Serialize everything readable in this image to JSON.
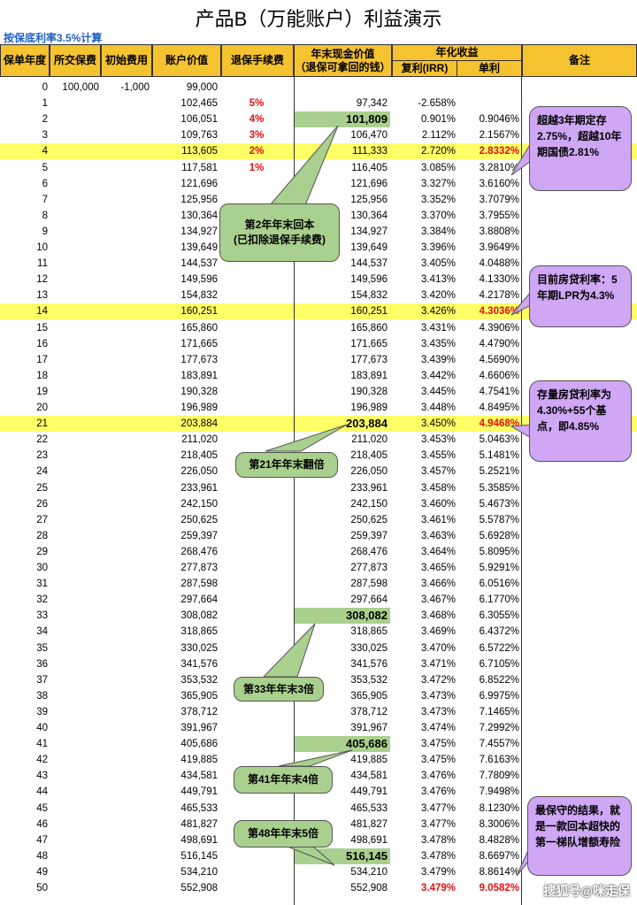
{
  "title": "产品B（万能账户）利益演示",
  "subtitle": "按保底利率3.5%计算",
  "headers": {
    "year": "保单年度",
    "premium": "所交保费",
    "initial_fee": "初始费用",
    "account_value": "账户价值",
    "surrender_fee": "退保手续费",
    "cash_value": "年末现金价值",
    "cash_value_sub": "（退保可拿回的钱）",
    "annual_yield": "年化收益",
    "compound": "复利(IRR)",
    "simple": "单利",
    "remarks": "备注"
  },
  "rows": [
    {
      "year": "0",
      "premium": "100,000",
      "fee": "-1,000",
      "account": "99,000",
      "surrender": "",
      "cash": "",
      "compound": "",
      "simple": ""
    },
    {
      "year": "1",
      "premium": "",
      "fee": "",
      "account": "102,465",
      "surrender": "5%",
      "cash": "97,342",
      "compound": "-2.658%",
      "simple": ""
    },
    {
      "year": "2",
      "premium": "",
      "fee": "",
      "account": "106,051",
      "surrender": "4%",
      "cash": "101,809",
      "compound": "0.901%",
      "simple": "0.9046%"
    },
    {
      "year": "3",
      "premium": "",
      "fee": "",
      "account": "109,763",
      "surrender": "3%",
      "cash": "106,470",
      "compound": "2.112%",
      "simple": "2.1567%"
    },
    {
      "year": "4",
      "premium": "",
      "fee": "",
      "account": "113,605",
      "surrender": "2%",
      "cash": "111,333",
      "compound": "2.720%",
      "simple": "2.8332%"
    },
    {
      "year": "5",
      "premium": "",
      "fee": "",
      "account": "117,581",
      "surrender": "1%",
      "cash": "116,405",
      "compound": "3.085%",
      "simple": "3.2810%"
    },
    {
      "year": "6",
      "premium": "",
      "fee": "",
      "account": "121,696",
      "surrender": "",
      "cash": "121,696",
      "compound": "3.327%",
      "simple": "3.6160%"
    },
    {
      "year": "7",
      "premium": "",
      "fee": "",
      "account": "125,956",
      "surrender": "",
      "cash": "125,956",
      "compound": "3.352%",
      "simple": "3.7079%"
    },
    {
      "year": "8",
      "premium": "",
      "fee": "",
      "account": "130,364",
      "surrender": "",
      "cash": "130,364",
      "compound": "3.370%",
      "simple": "3.7955%"
    },
    {
      "year": "9",
      "premium": "",
      "fee": "",
      "account": "134,927",
      "surrender": "",
      "cash": "134,927",
      "compound": "3.384%",
      "simple": "3.8808%"
    },
    {
      "year": "10",
      "premium": "",
      "fee": "",
      "account": "139,649",
      "surrender": "",
      "cash": "139,649",
      "compound": "3.396%",
      "simple": "3.9649%"
    },
    {
      "year": "11",
      "premium": "",
      "fee": "",
      "account": "144,537",
      "surrender": "",
      "cash": "144,537",
      "compound": "3.405%",
      "simple": "4.0488%"
    },
    {
      "year": "12",
      "premium": "",
      "fee": "",
      "account": "149,596",
      "surrender": "",
      "cash": "149,596",
      "compound": "3.413%",
      "simple": "4.1330%"
    },
    {
      "year": "13",
      "premium": "",
      "fee": "",
      "account": "154,832",
      "surrender": "",
      "cash": "154,832",
      "compound": "3.420%",
      "simple": "4.2178%"
    },
    {
      "year": "14",
      "premium": "",
      "fee": "",
      "account": "160,251",
      "surrender": "",
      "cash": "160,251",
      "compound": "3.426%",
      "simple": "4.3036%"
    },
    {
      "year": "15",
      "premium": "",
      "fee": "",
      "account": "165,860",
      "surrender": "",
      "cash": "165,860",
      "compound": "3.431%",
      "simple": "4.3906%"
    },
    {
      "year": "16",
      "premium": "",
      "fee": "",
      "account": "171,665",
      "surrender": "",
      "cash": "171,665",
      "compound": "3.435%",
      "simple": "4.4790%"
    },
    {
      "year": "17",
      "premium": "",
      "fee": "",
      "account": "177,673",
      "surrender": "",
      "cash": "177,673",
      "compound": "3.439%",
      "simple": "4.5690%"
    },
    {
      "year": "18",
      "premium": "",
      "fee": "",
      "account": "183,891",
      "surrender": "",
      "cash": "183,891",
      "compound": "3.442%",
      "simple": "4.6606%"
    },
    {
      "year": "19",
      "premium": "",
      "fee": "",
      "account": "190,328",
      "surrender": "",
      "cash": "190,328",
      "compound": "3.445%",
      "simple": "4.7541%"
    },
    {
      "year": "20",
      "premium": "",
      "fee": "",
      "account": "196,989",
      "surrender": "",
      "cash": "196,989",
      "compound": "3.448%",
      "simple": "4.8495%"
    },
    {
      "year": "21",
      "premium": "",
      "fee": "",
      "account": "203,884",
      "surrender": "",
      "cash": "203,884",
      "compound": "3.450%",
      "simple": "4.9468%"
    },
    {
      "year": "22",
      "premium": "",
      "fee": "",
      "account": "211,020",
      "surrender": "",
      "cash": "211,020",
      "compound": "3.453%",
      "simple": "5.0463%"
    },
    {
      "year": "23",
      "premium": "",
      "fee": "",
      "account": "218,405",
      "surrender": "",
      "cash": "218,405",
      "compound": "3.455%",
      "simple": "5.1481%"
    },
    {
      "year": "24",
      "premium": "",
      "fee": "",
      "account": "226,050",
      "surrender": "",
      "cash": "226,050",
      "compound": "3.457%",
      "simple": "5.2521%"
    },
    {
      "year": "25",
      "premium": "",
      "fee": "",
      "account": "233,961",
      "surrender": "",
      "cash": "233,961",
      "compound": "3.458%",
      "simple": "5.3585%"
    },
    {
      "year": "26",
      "premium": "",
      "fee": "",
      "account": "242,150",
      "surrender": "",
      "cash": "242,150",
      "compound": "3.460%",
      "simple": "5.4673%"
    },
    {
      "year": "27",
      "premium": "",
      "fee": "",
      "account": "250,625",
      "surrender": "",
      "cash": "250,625",
      "compound": "3.461%",
      "simple": "5.5787%"
    },
    {
      "year": "28",
      "premium": "",
      "fee": "",
      "account": "259,397",
      "surrender": "",
      "cash": "259,397",
      "compound": "3.463%",
      "simple": "5.6928%"
    },
    {
      "year": "29",
      "premium": "",
      "fee": "",
      "account": "268,476",
      "surrender": "",
      "cash": "268,476",
      "compound": "3.464%",
      "simple": "5.8095%"
    },
    {
      "year": "30",
      "premium": "",
      "fee": "",
      "account": "277,873",
      "surrender": "",
      "cash": "277,873",
      "compound": "3.465%",
      "simple": "5.9291%"
    },
    {
      "year": "31",
      "premium": "",
      "fee": "",
      "account": "287,598",
      "surrender": "",
      "cash": "287,598",
      "compound": "3.466%",
      "simple": "6.0516%"
    },
    {
      "year": "32",
      "premium": "",
      "fee": "",
      "account": "297,664",
      "surrender": "",
      "cash": "297,664",
      "compound": "3.467%",
      "simple": "6.1770%"
    },
    {
      "year": "33",
      "premium": "",
      "fee": "",
      "account": "308,082",
      "surrender": "",
      "cash": "308,082",
      "compound": "3.468%",
      "simple": "6.3055%"
    },
    {
      "year": "34",
      "premium": "",
      "fee": "",
      "account": "318,865",
      "surrender": "",
      "cash": "318,865",
      "compound": "3.469%",
      "simple": "6.4372%"
    },
    {
      "year": "35",
      "premium": "",
      "fee": "",
      "account": "330,025",
      "surrender": "",
      "cash": "330,025",
      "compound": "3.470%",
      "simple": "6.5722%"
    },
    {
      "year": "36",
      "premium": "",
      "fee": "",
      "account": "341,576",
      "surrender": "",
      "cash": "341,576",
      "compound": "3.471%",
      "simple": "6.7105%"
    },
    {
      "year": "37",
      "premium": "",
      "fee": "",
      "account": "353,532",
      "surrender": "",
      "cash": "353,532",
      "compound": "3.472%",
      "simple": "6.8522%"
    },
    {
      "year": "38",
      "premium": "",
      "fee": "",
      "account": "365,905",
      "surrender": "",
      "cash": "365,905",
      "compound": "3.473%",
      "simple": "6.9975%"
    },
    {
      "year": "39",
      "premium": "",
      "fee": "",
      "account": "378,712",
      "surrender": "",
      "cash": "378,712",
      "compound": "3.473%",
      "simple": "7.1465%"
    },
    {
      "year": "40",
      "premium": "",
      "fee": "",
      "account": "391,967",
      "surrender": "",
      "cash": "391,967",
      "compound": "3.474%",
      "simple": "7.2992%"
    },
    {
      "year": "41",
      "premium": "",
      "fee": "",
      "account": "405,686",
      "surrender": "",
      "cash": "405,686",
      "compound": "3.475%",
      "simple": "7.4557%"
    },
    {
      "year": "42",
      "premium": "",
      "fee": "",
      "account": "419,885",
      "surrender": "",
      "cash": "419,885",
      "compound": "3.475%",
      "simple": "7.6163%"
    },
    {
      "year": "43",
      "premium": "",
      "fee": "",
      "account": "434,581",
      "surrender": "",
      "cash": "434,581",
      "compound": "3.476%",
      "simple": "7.7809%"
    },
    {
      "year": "44",
      "premium": "",
      "fee": "",
      "account": "449,791",
      "surrender": "",
      "cash": "449,791",
      "compound": "3.476%",
      "simple": "7.9498%"
    },
    {
      "year": "45",
      "premium": "",
      "fee": "",
      "account": "465,533",
      "surrender": "",
      "cash": "465,533",
      "compound": "3.477%",
      "simple": "8.1230%"
    },
    {
      "year": "46",
      "premium": "",
      "fee": "",
      "account": "481,827",
      "surrender": "",
      "cash": "481,827",
      "compound": "3.477%",
      "simple": "8.3006%"
    },
    {
      "year": "47",
      "premium": "",
      "fee": "",
      "account": "498,691",
      "surrender": "",
      "cash": "498,691",
      "compound": "3.478%",
      "simple": "8.4828%"
    },
    {
      "year": "48",
      "premium": "",
      "fee": "",
      "account": "516,145",
      "surrender": "",
      "cash": "516,145",
      "compound": "3.478%",
      "simple": "8.6697%"
    },
    {
      "year": "49",
      "premium": "",
      "fee": "",
      "account": "534,210",
      "surrender": "",
      "cash": "534,210",
      "compound": "3.479%",
      "simple": "8.8614%"
    },
    {
      "year": "50",
      "premium": "",
      "fee": "",
      "account": "552,908",
      "surrender": "",
      "cash": "552,908",
      "compound": "3.479%",
      "simple": "9.0582%"
    }
  ],
  "highlighted_rows": [
    "4",
    "14",
    "21"
  ],
  "bold_cash_rows": [
    "2",
    "21",
    "33",
    "41",
    "48"
  ],
  "red_simple_rows": [
    "4",
    "14",
    "21",
    "50"
  ],
  "red_compound_rows": [
    "50"
  ],
  "callouts": {
    "year2": "第2年年末回本\n(已扣除退保手续费)",
    "year21": "第21年年末翻倍",
    "year33": "第33年年末3倍",
    "year41": "第41年年末4倍",
    "year48": "第48年年末5倍"
  },
  "notes": {
    "note1": "超越3年期定存2.75%，超越10年期国债2.81%",
    "note2": "目前房贷利率：5年期LPR为4.3%",
    "note3": "存量房贷利率为4.30%+55个基点，即4.85%",
    "note4": "最保守的结果，就是一款回本超快的第一梯队增额寿险"
  },
  "watermark": "搜狐号@咪走保",
  "colors": {
    "header": "#f5c230",
    "highlight_row": "#ffff66",
    "callout_green": "#a9d08e",
    "note_purple": "#cfa7f5",
    "surrender_red": "#e01010",
    "subtitle_blue": "#1f5fc8"
  }
}
